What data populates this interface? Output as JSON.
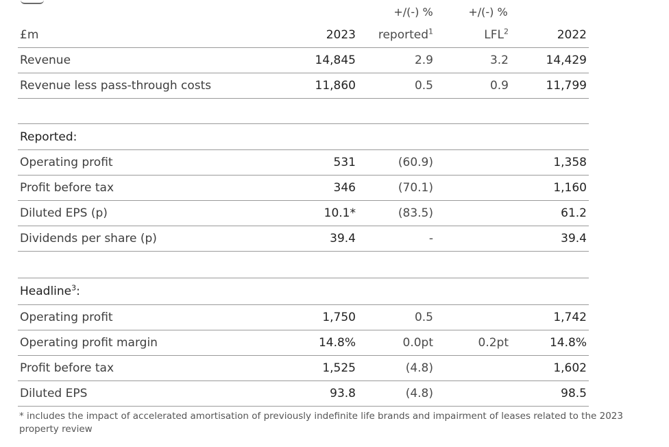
{
  "header": {
    "unit": "£m",
    "col_2023": "2023",
    "col_rep_top": "+/(-) %",
    "col_rep": "reported",
    "col_rep_sup": "1",
    "col_lfl_top": "+/(-) %",
    "col_lfl": "LFL",
    "col_lfl_sup": "2",
    "col_2022": "2022"
  },
  "summary_rows": [
    {
      "label": "Revenue",
      "v2023": "14,845",
      "rep": "2.9",
      "lfl": "3.2",
      "v2022": "14,429"
    },
    {
      "label": "Revenue less pass-through costs",
      "v2023": "11,860",
      "rep": "0.5",
      "lfl": "0.9",
      "v2022": "11,799"
    }
  ],
  "reported": {
    "title": "Reported:",
    "rows": [
      {
        "label": "Operating profit",
        "v2023": "531",
        "rep": "(60.9)",
        "lfl": "",
        "v2022": "1,358"
      },
      {
        "label": "Profit before tax",
        "v2023": "346",
        "rep": "(70.1)",
        "lfl": "",
        "v2022": "1,160"
      },
      {
        "label": "Diluted EPS (p)",
        "v2023": "10.1*",
        "rep": "(83.5)",
        "lfl": "",
        "v2022": "61.2"
      },
      {
        "label": "Dividends per share (p)",
        "v2023": "39.4",
        "rep": "-",
        "lfl": "",
        "v2022": "39.4"
      }
    ]
  },
  "headline": {
    "title": "Headline",
    "title_sup": "3",
    "title_suffix": ":",
    "rows": [
      {
        "label": "Operating profit",
        "v2023": "1,750",
        "rep": "0.5",
        "lfl": "",
        "v2022": "1,742"
      },
      {
        "label": "Operating profit margin",
        "v2023": "14.8%",
        "rep": "0.0pt",
        "lfl": "0.2pt",
        "v2022": "14.8%"
      },
      {
        "label": "Profit before tax",
        "v2023": "1,525",
        "rep": "(4.8)",
        "lfl": "",
        "v2022": "1,602"
      },
      {
        "label": "Diluted EPS",
        "v2023": "93.8",
        "rep": "(4.8)",
        "lfl": "",
        "v2022": "98.5"
      }
    ]
  },
  "footnote": "* includes the impact of accelerated amortisation of previously indefinite life brands and impairment of leases related to the 2023 property review"
}
